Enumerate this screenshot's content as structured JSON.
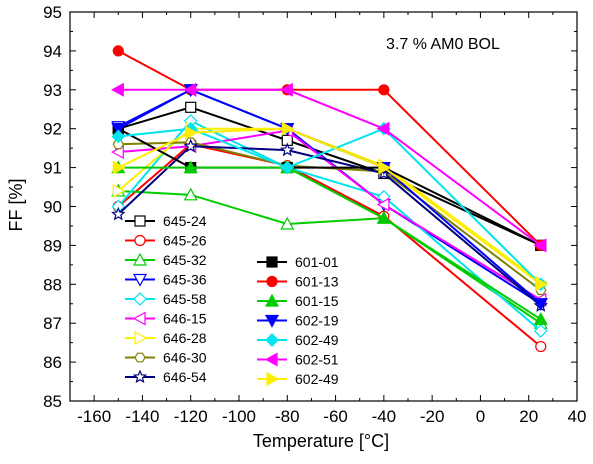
{
  "chart_data": {
    "type": "line",
    "annotation": "3.7 % AM0 BOL",
    "xlabel": "Temperature [°C]",
    "ylabel": "FF [%]",
    "xlim": [
      -170,
      40
    ],
    "ylim": [
      85,
      95
    ],
    "xticks": [
      "-160",
      "-140",
      "-120",
      "-100",
      "-80",
      "-60",
      "-40",
      "-20",
      "0",
      "20",
      "40"
    ],
    "yticks": [
      "85",
      "86",
      "87",
      "88",
      "89",
      "90",
      "91",
      "92",
      "93",
      "94",
      "95"
    ],
    "x": [
      -150,
      -120,
      -80,
      -40,
      25
    ],
    "series": [
      {
        "name": "645-24",
        "color": "#000000",
        "marker": "square",
        "filled": false,
        "values": [
          92.0,
          92.55,
          91.7,
          90.85,
          89.0
        ]
      },
      {
        "name": "645-26",
        "color": "#ff0000",
        "marker": "circle",
        "filled": false,
        "values": [
          90.0,
          91.6,
          91.05,
          89.75,
          86.4
        ]
      },
      {
        "name": "645-32",
        "color": "#00cc00",
        "marker": "triangle-up",
        "filled": false,
        "values": [
          90.4,
          90.3,
          89.55,
          89.7,
          87.0
        ]
      },
      {
        "name": "645-36",
        "color": "#0000ff",
        "marker": "triangle-down",
        "filled": false,
        "values": [
          92.05,
          93.0,
          92.0,
          90.05,
          87.5
        ]
      },
      {
        "name": "645-58",
        "color": "#00e5ee",
        "marker": "diamond",
        "filled": false,
        "values": [
          90.0,
          92.2,
          91.0,
          90.25,
          86.8
        ]
      },
      {
        "name": "646-15",
        "color": "#ff00ff",
        "marker": "triangle-left",
        "filled": false,
        "values": [
          91.4,
          91.55,
          91.95,
          90.05,
          87.6
        ]
      },
      {
        "name": "646-28",
        "color": "#ffee00",
        "marker": "triangle-right",
        "filled": false,
        "values": [
          90.4,
          92.0,
          92.0,
          91.05,
          88.05
        ]
      },
      {
        "name": "646-30",
        "color": "#808000",
        "marker": "hexagon",
        "filled": false,
        "values": [
          91.6,
          91.65,
          91.05,
          90.9,
          87.85
        ]
      },
      {
        "name": "646-54",
        "color": "#000080",
        "marker": "star",
        "filled": false,
        "values": [
          89.8,
          91.55,
          91.45,
          90.85,
          87.45
        ]
      },
      {
        "name": "601-01",
        "color": "#000000",
        "marker": "square",
        "filled": true,
        "values": [
          92.0,
          91.0,
          91.0,
          91.0,
          89.0
        ]
      },
      {
        "name": "601-13",
        "color": "#ff0000",
        "marker": "circle",
        "filled": true,
        "values": [
          94.0,
          93.0,
          93.0,
          93.0,
          89.0
        ]
      },
      {
        "name": "601-15",
        "color": "#00cc00",
        "marker": "triangle-up",
        "filled": true,
        "values": [
          91.0,
          91.0,
          91.0,
          89.7,
          87.1
        ]
      },
      {
        "name": "602-19",
        "color": "#0000ff",
        "marker": "triangle-down",
        "filled": true,
        "values": [
          92.0,
          93.0,
          92.0,
          91.0,
          87.5
        ]
      },
      {
        "name": "602-49",
        "color": "#00e5ee",
        "marker": "diamond",
        "filled": true,
        "values": [
          91.8,
          92.0,
          91.0,
          92.0,
          88.0
        ]
      },
      {
        "name": "602-51",
        "color": "#ff00ff",
        "marker": "triangle-left",
        "filled": true,
        "values": [
          93.0,
          93.0,
          93.0,
          92.0,
          89.0
        ]
      },
      {
        "name": "602-49",
        "color": "#ffee00",
        "marker": "triangle-right",
        "filled": true,
        "values": [
          91.0,
          91.9,
          92.0,
          91.0,
          88.0
        ]
      }
    ]
  }
}
